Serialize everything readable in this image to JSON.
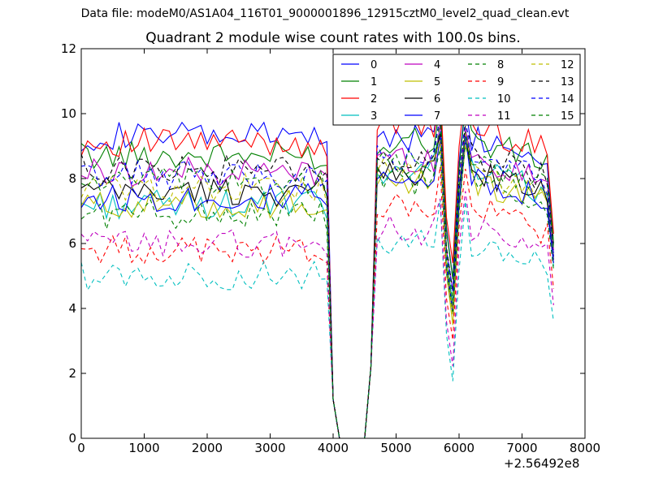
{
  "suptitle": "Data file: modeM0/AS1A04_116T01_9000001896_12915cztM0_level2_quad_clean.evt",
  "chart_data": {
    "type": "line",
    "title": "Quadrant 2 module wise count rates with 100.0s bins.",
    "xlabel": "",
    "ylabel": "",
    "x_offset_label": "+2.56492e8",
    "xlim": [
      0,
      8000
    ],
    "ylim": [
      0,
      12
    ],
    "xticks": [
      0,
      1000,
      2000,
      3000,
      4000,
      5000,
      6000,
      7000,
      8000
    ],
    "yticks": [
      0,
      2,
      4,
      6,
      8,
      10,
      12
    ],
    "grid": false,
    "legend": {
      "position": "top-right",
      "columns": 4
    },
    "x": [
      0,
      100,
      200,
      300,
      400,
      500,
      600,
      700,
      800,
      900,
      1000,
      1100,
      1200,
      1300,
      1400,
      1500,
      1600,
      1700,
      1800,
      1900,
      2000,
      2100,
      2200,
      2300,
      2400,
      2500,
      2600,
      2700,
      2800,
      2900,
      3000,
      3100,
      3200,
      3300,
      3400,
      3500,
      3600,
      3700,
      3800,
      3900,
      4000,
      4100,
      4200,
      4300,
      4400,
      4500,
      4600,
      4700,
      4800,
      4900,
      5000,
      5100,
      5200,
      5300,
      5400,
      5500,
      5600,
      5700,
      5800,
      5900,
      6000,
      6100,
      6200,
      6300,
      6400,
      6500,
      6600,
      6700,
      6800,
      6900,
      7000,
      7100,
      7200,
      7300,
      7400,
      7500
    ],
    "series": [
      {
        "name": "0",
        "color": "#0000ff",
        "dash": "solid",
        "plateau1": 9.3,
        "plateau2": 9.3,
        "end": 5.6
      },
      {
        "name": "1",
        "color": "#008000",
        "dash": "solid",
        "plateau1": 8.7,
        "plateau2": 9.2,
        "end": 6.0
      },
      {
        "name": "2",
        "color": "#ff0000",
        "dash": "solid",
        "plateau1": 9.1,
        "plateau2": 9.6,
        "end": 6.3
      },
      {
        "name": "3",
        "color": "#00bfbf",
        "dash": "solid",
        "plateau1": 7.2,
        "plateau2": 8.3,
        "end": 5.3
      },
      {
        "name": "4",
        "color": "#bf00bf",
        "dash": "solid",
        "plateau1": 8.2,
        "plateau2": 8.6,
        "end": 5.8
      },
      {
        "name": "5",
        "color": "#bfbf00",
        "dash": "solid",
        "plateau1": 7.2,
        "plateau2": 7.9,
        "end": 5.4
      },
      {
        "name": "6",
        "color": "#000000",
        "dash": "solid",
        "plateau1": 7.6,
        "plateau2": 8.2,
        "end": 5.5
      },
      {
        "name": "7",
        "color": "#0000ff",
        "dash": "solid",
        "plateau1": 7.4,
        "plateau2": 8.1,
        "end": 5.4
      },
      {
        "name": "8",
        "color": "#008000",
        "dash": "dashed",
        "plateau1": 6.9,
        "plateau2": 7.9,
        "end": 5.2
      },
      {
        "name": "9",
        "color": "#ff0000",
        "dash": "dashed",
        "plateau1": 5.8,
        "plateau2": 7.1,
        "end": 4.6
      },
      {
        "name": "10",
        "color": "#00bfbf",
        "dash": "dashed",
        "plateau1": 5.0,
        "plateau2": 6.0,
        "end": 3.6
      },
      {
        "name": "11",
        "color": "#bf00bf",
        "dash": "dashed",
        "plateau1": 6.0,
        "plateau2": 6.4,
        "end": 4.1
      },
      {
        "name": "12",
        "color": "#bfbf00",
        "dash": "dashed",
        "plateau1": 7.7,
        "plateau2": 8.2,
        "end": 5.6
      },
      {
        "name": "13",
        "color": "#000000",
        "dash": "dashed",
        "plateau1": 8.3,
        "plateau2": 8.7,
        "end": 5.9
      },
      {
        "name": "14",
        "color": "#0000ff",
        "dash": "dashed",
        "plateau1": 8.1,
        "plateau2": 8.6,
        "end": 5.7
      },
      {
        "name": "15",
        "color": "#008000",
        "dash": "dashed",
        "plateau1": 7.9,
        "plateau2": 8.5,
        "end": 5.8
      }
    ]
  }
}
